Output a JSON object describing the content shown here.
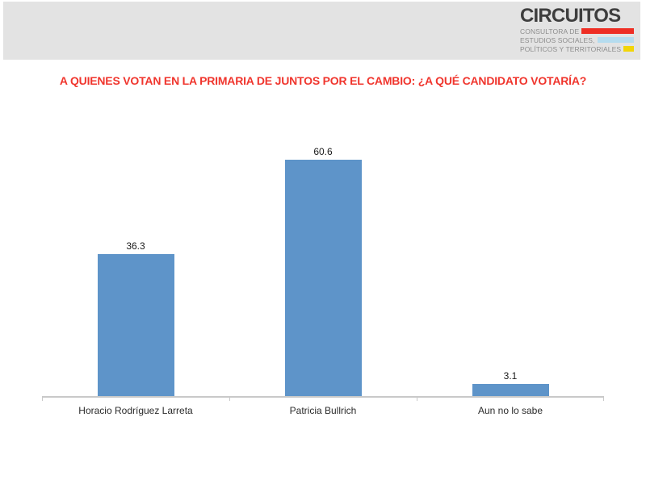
{
  "header": {
    "logo": {
      "title": "CIRCUITOS",
      "lines": [
        {
          "text": "CONSULTORA DE",
          "bar_color": "#ee2e24"
        },
        {
          "text": "ESTUDIOS SOCIALES,",
          "bar_color": "#b5dcef"
        },
        {
          "text": "POLÍTICOS Y TERRITORIALES",
          "bar_color": "#f2d508"
        }
      ]
    }
  },
  "chart_data": {
    "type": "bar",
    "title": "A QUIENES VOTAN EN LA PRIMARIA DE JUNTOS POR EL CAMBIO: ¿A QUÉ CANDIDATO VOTARÍA?",
    "categories": [
      "Horacio Rodríguez Larreta",
      "Patricia Bullrich",
      "Aun no lo sabe"
    ],
    "values": [
      36.3,
      60.6,
      3.1
    ],
    "data_labels": [
      "36.3",
      "60.6",
      "3.1"
    ],
    "xlabel": "",
    "ylabel": "",
    "ylim": [
      0,
      70
    ],
    "grid": false,
    "legend": false,
    "bar_color": "#5e94c9"
  },
  "colors": {
    "title_red": "#f0352d",
    "bar_blue": "#5e94c9",
    "axis_gray": "#c9c9c9",
    "banner_gray": "#e3e3e3",
    "logo_dark": "#3e3e3e",
    "logo_gray": "#8d8d8d"
  }
}
